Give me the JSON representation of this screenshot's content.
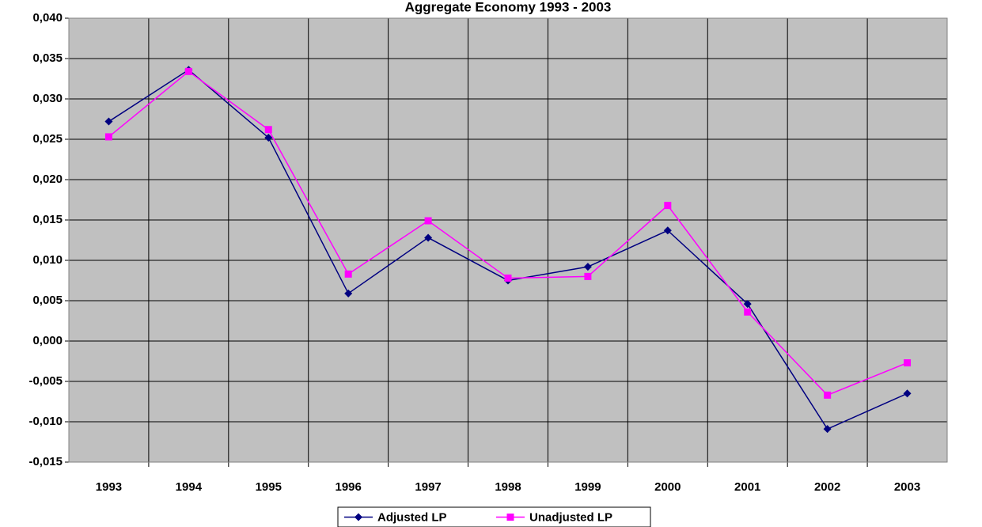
{
  "chart_data": {
    "type": "line",
    "title": "Aggregate Economy 1993 - 2003",
    "categories": [
      "1993",
      "1994",
      "1995",
      "1996",
      "1997",
      "1998",
      "1999",
      "2000",
      "2001",
      "2002",
      "2003"
    ],
    "series": [
      {
        "name": "Adjusted LP",
        "color": "#000080",
        "marker": "diamond",
        "values": [
          0.0272,
          0.0336,
          0.0252,
          0.0059,
          0.0128,
          0.0075,
          0.0092,
          0.0137,
          0.0046,
          -0.0109,
          -0.0065
        ]
      },
      {
        "name": "Unadjusted LP",
        "color": "#ff00ff",
        "marker": "square",
        "values": [
          0.0253,
          0.0334,
          0.0262,
          0.0083,
          0.0149,
          0.0078,
          0.008,
          0.0168,
          0.0036,
          -0.0067,
          -0.0027
        ]
      }
    ],
    "ylim": [
      -0.015,
      0.04
    ],
    "yticks": [
      {
        "value": -0.015,
        "label": "-0,015"
      },
      {
        "value": -0.01,
        "label": "-0,010"
      },
      {
        "value": -0.005,
        "label": "-0,005"
      },
      {
        "value": 0,
        "label": "0,000"
      },
      {
        "value": 0.005,
        "label": "0,005"
      },
      {
        "value": 0.01,
        "label": "0,010"
      },
      {
        "value": 0.015,
        "label": "0,015"
      },
      {
        "value": 0.02,
        "label": "0,020"
      },
      {
        "value": 0.025,
        "label": "0,025"
      },
      {
        "value": 0.03,
        "label": "0,030"
      },
      {
        "value": 0.035,
        "label": "0,035"
      },
      {
        "value": 0.04,
        "label": "0,040"
      }
    ],
    "grid": true,
    "background": "#c0c0c0",
    "legend": "bottom"
  }
}
